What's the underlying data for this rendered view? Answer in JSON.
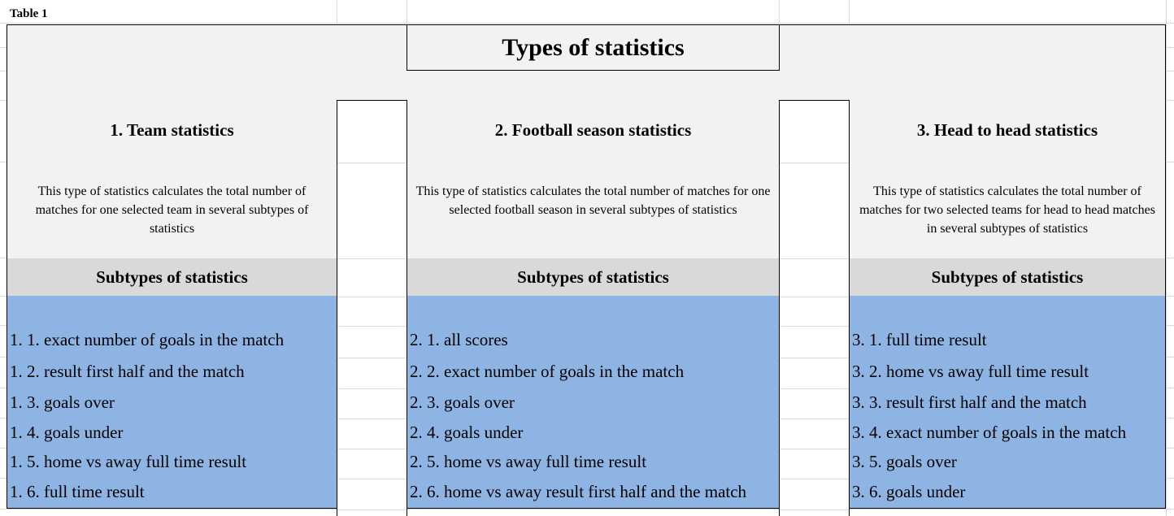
{
  "table_label": "Table 1",
  "title": "Types of statistics",
  "columns": [
    {
      "heading": "1. Team statistics",
      "description": "This type of statistics calculates the total number of matches for one selected team in several subtypes of statistics",
      "subtypes_header": "Subtypes of statistics",
      "items": [
        "1. 1. exact number of goals in the match",
        "1. 2. result first half and the match",
        "1. 3. goals over",
        "1. 4. goals under",
        "1. 5. home vs away full time result",
        "1. 6. full time result"
      ]
    },
    {
      "heading": "2. Football season statistics",
      "description": "This type of statistics calculates the total number of matches for one selected football season in several subtypes of statistics",
      "subtypes_header": "Subtypes of statistics",
      "items": [
        "2. 1. all scores",
        "2. 2. exact number of goals in the match",
        "2. 3. goals over",
        "2. 4. goals under",
        "2. 5. home vs away full time result",
        "2. 6. home vs away result first half and the match"
      ]
    },
    {
      "heading": "3. Head to head statistics",
      "description": "This type of statistics calculates the total number of matches for two selected teams for head to head matches in several subtypes of statistics",
      "subtypes_header": "Subtypes of statistics",
      "items": [
        "3. 1. full time result",
        "3. 2. home vs away full time result",
        "3. 3. result first half and the match",
        "3. 4. exact number of goals in the match",
        "3. 5. goals over",
        "3. 6. goals under"
      ]
    }
  ],
  "colors": {
    "panel": "#f2f2f2",
    "subheader": "#d9d9d9",
    "list": "#8eb4e3",
    "grid": "#d9d9d9"
  }
}
